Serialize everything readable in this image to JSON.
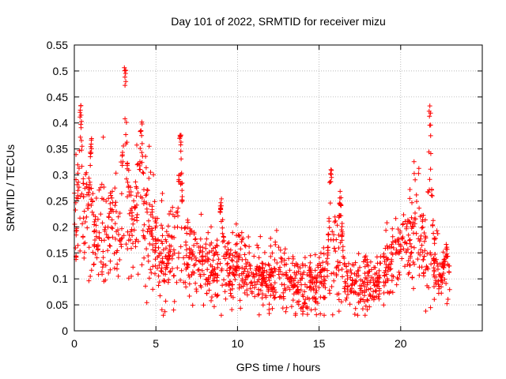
{
  "chart_data": {
    "type": "scatter",
    "title": "Day 101 of 2022, SRMTID for receiver mizu",
    "xlabel": "GPS time / hours",
    "ylabel": "SRMTID / TECUs",
    "xlim": [
      0,
      25
    ],
    "ylim": [
      0,
      0.55
    ],
    "xticks": [
      0,
      5,
      10,
      15,
      20
    ],
    "yticks": [
      0,
      0.05,
      0.1,
      0.15,
      0.2,
      0.25,
      0.3,
      0.35,
      0.4,
      0.45,
      0.5,
      0.55
    ],
    "grid": true,
    "marker": "+",
    "series_color": "#ff0000",
    "envelope": {
      "description": "approximate typical SRMTID level over the day",
      "x": [
        0,
        0.5,
        1,
        1.5,
        2,
        2.5,
        3,
        3.5,
        4,
        4.5,
        5,
        5.5,
        6,
        6.5,
        7,
        7.5,
        8,
        8.5,
        9,
        9.5,
        10,
        10.5,
        11,
        11.5,
        12,
        12.5,
        13,
        13.5,
        14,
        14.5,
        15,
        15.5,
        16,
        16.5,
        17,
        17.5,
        18,
        18.5,
        19,
        19.5,
        20,
        20.5,
        21,
        21.5,
        22,
        22.5,
        23
      ],
      "y": [
        0.22,
        0.21,
        0.19,
        0.18,
        0.2,
        0.2,
        0.23,
        0.22,
        0.23,
        0.21,
        0.16,
        0.14,
        0.15,
        0.17,
        0.14,
        0.13,
        0.12,
        0.11,
        0.14,
        0.12,
        0.13,
        0.13,
        0.1,
        0.11,
        0.1,
        0.11,
        0.1,
        0.09,
        0.08,
        0.09,
        0.1,
        0.1,
        0.14,
        0.11,
        0.1,
        0.09,
        0.09,
        0.09,
        0.11,
        0.14,
        0.17,
        0.19,
        0.2,
        0.15,
        0.12,
        0.1,
        0.09
      ]
    },
    "peaks": [
      {
        "x": 0.4,
        "y": 0.435
      },
      {
        "x": 1.0,
        "y": 0.37
      },
      {
        "x": 3.1,
        "y": 0.515
      },
      {
        "x": 4.1,
        "y": 0.41
      },
      {
        "x": 6.5,
        "y": 0.385
      },
      {
        "x": 9.0,
        "y": 0.265
      },
      {
        "x": 15.7,
        "y": 0.32
      },
      {
        "x": 16.3,
        "y": 0.28
      },
      {
        "x": 21.8,
        "y": 0.435
      },
      {
        "x": 22.8,
        "y": 0.18
      }
    ],
    "n_points": 1600
  }
}
